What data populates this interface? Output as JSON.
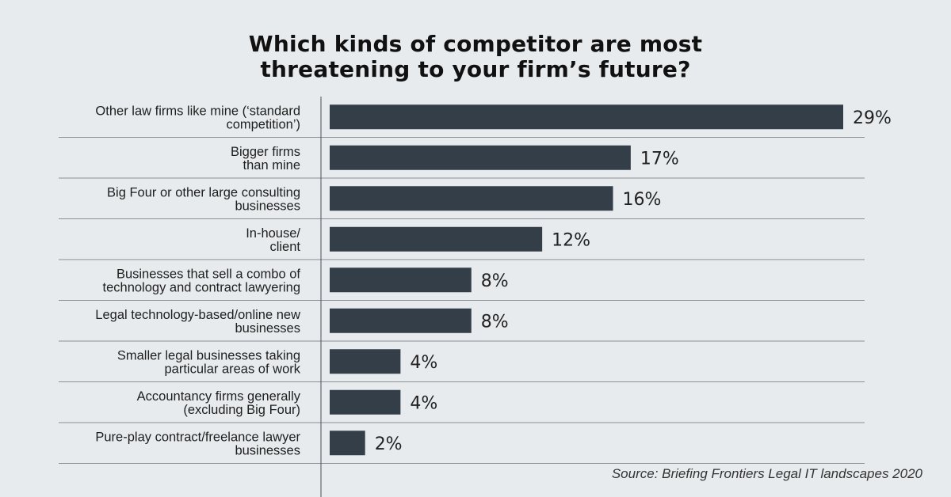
{
  "title_lines": [
    "Which kinds of competitor are most",
    "threatening to your firm’s future?"
  ],
  "source": "Source: Briefing Frontiers Legal IT landscapes 2020",
  "colors": {
    "bar": "#333e48",
    "divider": "#8a8f94",
    "axis": "#4a4f54",
    "background": "#e8ebee"
  },
  "chart_data": {
    "type": "bar",
    "orientation": "horizontal",
    "title": "Which kinds of competitor are most threatening to your firm’s future?",
    "categories": [
      [
        "Other law firms like mine (‘standard",
        "competition’)"
      ],
      [
        "Bigger firms",
        "than mine"
      ],
      [
        "Big Four or other large consulting",
        "businesses"
      ],
      [
        "In-house/",
        "client"
      ],
      [
        "Businesses that sell a combo of",
        "technology and contract lawyering"
      ],
      [
        "Legal technology-based/online new",
        "businesses"
      ],
      [
        "Smaller legal businesses taking",
        "particular areas of work"
      ],
      [
        "Accountancy firms generally",
        "(excluding Big Four)"
      ],
      [
        "Pure-play contract/freelance lawyer",
        "businesses"
      ]
    ],
    "values": [
      29,
      17,
      16,
      12,
      8,
      8,
      4,
      4,
      2
    ],
    "value_labels": [
      "29%",
      "17%",
      "16%",
      "12%",
      "8%",
      "8%",
      "4%",
      "4%",
      "2%"
    ],
    "unit": "%",
    "xlim": [
      0,
      29
    ],
    "grid": false,
    "legend": "none"
  }
}
